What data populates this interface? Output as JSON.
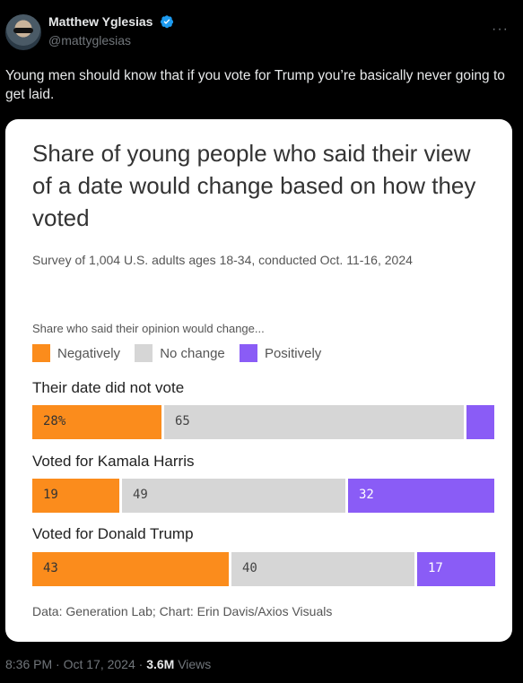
{
  "tweet": {
    "author_name": "Matthew Yglesias",
    "author_handle": "@mattyglesias",
    "more_label": "···",
    "text": "Young men should know that if you vote for Trump you’re basically never going to get laid.",
    "timestamp": "8:36 PM · Oct 17, 2024 · ",
    "views_count": "3.6M",
    "views_label": " Views"
  },
  "colors": {
    "negatively": "#fb8c1c",
    "no_change": "#d6d6d6",
    "positively": "#8a5cf6"
  },
  "chart_data": {
    "type": "bar",
    "orientation": "horizontal-stacked-100",
    "title": "Share of young people who said their view of a date would change based on how they voted",
    "subtitle": "Survey of 1,004 U.S. adults ages 18-34, conducted Oct. 11-16, 2024",
    "legend_title": "Share who said their opinion would change...",
    "legend_placement": "top",
    "categories": [
      "Their date did not vote",
      "Voted for Kamala Harris",
      "Voted for Donald Trump"
    ],
    "series": [
      {
        "name": "Negatively",
        "values": [
          28,
          19,
          43
        ]
      },
      {
        "name": "No change",
        "values": [
          65,
          49,
          40
        ]
      },
      {
        "name": "Positively",
        "values": [
          6,
          32,
          17
        ]
      }
    ],
    "data_labels": [
      [
        "28%",
        "65",
        ""
      ],
      [
        "19",
        "49",
        "32"
      ],
      [
        "43",
        "40",
        "17"
      ]
    ],
    "source": "Data: Generation Lab; Chart: Erin Davis/Axios Visuals"
  }
}
